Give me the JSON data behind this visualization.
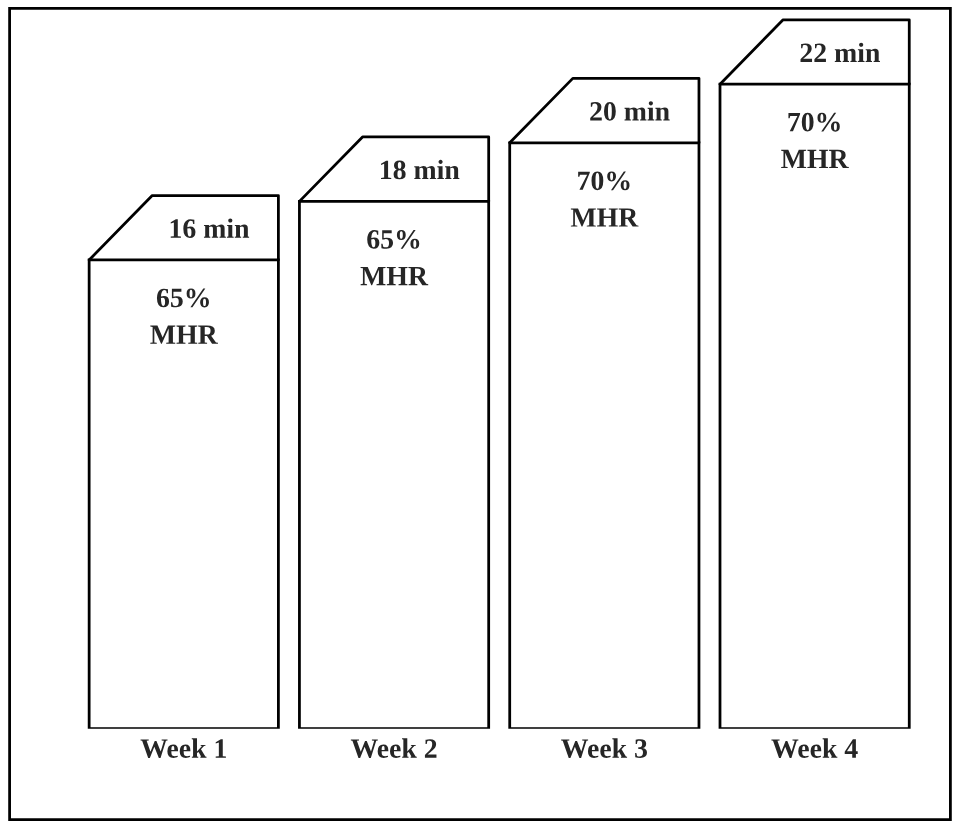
{
  "chart_data": {
    "type": "bar",
    "categories": [
      "Week 1",
      "Week 2",
      "Week 3",
      "Week 4"
    ],
    "values": [
      16,
      18,
      20,
      22
    ],
    "color": "#ffffff",
    "value_labels": [
      "16 min",
      "18 min",
      "20 min",
      "22 min"
    ],
    "annotations": [
      {
        "text": "65%\nMHR",
        "x": "Week 1",
        "y": 16
      },
      {
        "text": "65%\nMHR",
        "x": "Week 2",
        "y": 18
      },
      {
        "text": "70%\nMHR",
        "x": "Week 3",
        "y": 20
      },
      {
        "text": "70%\nMHR",
        "x": "Week 4",
        "y": 22
      }
    ],
    "tick_labels": "x",
    "grid": false,
    "legend": false
  }
}
